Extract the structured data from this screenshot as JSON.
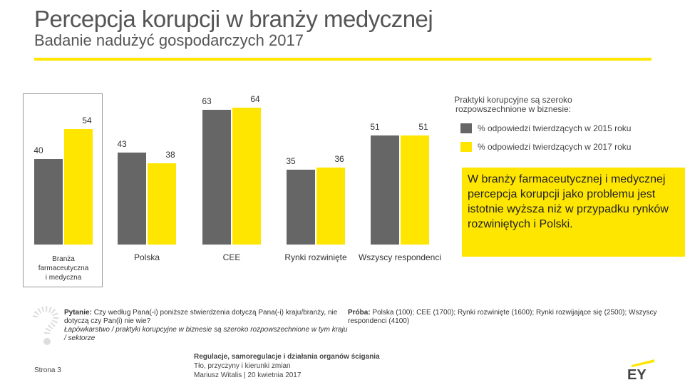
{
  "header": {
    "title": "Percepcja korupcji w branży medycznej",
    "subtitle": "Badanie nadużyć gospodarczych 2017"
  },
  "colors": {
    "grey": "#666666",
    "yellow": "#FFE600",
    "rule": "#FFE600"
  },
  "chart_data": {
    "type": "bar",
    "categories": [
      "Branża farmaceutyczna i medyczna",
      "Polska",
      "CEE",
      "Rynki rozwinięte",
      "Wszyscy respondenci"
    ],
    "category_lines": [
      [
        "Branża",
        "farmaceutyczna",
        "i medyczna"
      ],
      [
        "Polska"
      ],
      [
        "CEE"
      ],
      [
        "Rynki rozwinięte"
      ],
      [
        "Wszyscy respondenci"
      ]
    ],
    "series": [
      {
        "name": "% odpowiedzi twierdzących w 2015 roku",
        "values": [
          40,
          43,
          63,
          35,
          51
        ],
        "color": "#666666"
      },
      {
        "name": "% odpowiedzi twierdzących w 2017 roku",
        "values": [
          54,
          38,
          64,
          36,
          51
        ],
        "color": "#FFE600"
      }
    ],
    "ylim": [
      0,
      70
    ],
    "title": "",
    "xlabel": "",
    "ylabel": ""
  },
  "legend": {
    "title": "Praktyki korupcyjne są szeroko rozpowszechnione w biznesie:",
    "item_2015": "% odpowiedzi twierdzących w 2015 roku",
    "item_2017": "% odpowiedzi twierdzących w 2017 roku"
  },
  "callout": {
    "text": "W branży farmaceutycznej i medycznej percepcja korupcji jako problemu jest istotnie wyższa niż w przypadku rynków rozwiniętych i Polski."
  },
  "question": {
    "label": "Pytanie:",
    "text": "Czy według Pana(-i) poniższe stwierdzenia dotyczą Pana(-i) kraju/branży, nie dotyczą czy Pan(i) nie wie?",
    "italic": "Łapówkarstwo / praktyki korupcyjne w biznesie są szeroko rozpowszechnione w tym kraju / sektorze"
  },
  "sample": {
    "label": "Próba:",
    "text": "Polska (100); CEE (1700); Rynki rozwinięte (1600); Rynki rozwijające się (2500); Wszyscy respondenci (4100)"
  },
  "footer": {
    "page": "Strona 3",
    "line1": "Regulacje, samoregulacje i działania organów ścigania",
    "line2": "Tło, przyczyny i kierunki zmian",
    "line3": "Mariusz Witalis | 20 kwietnia 2017"
  },
  "logo": {
    "text": "EY"
  }
}
